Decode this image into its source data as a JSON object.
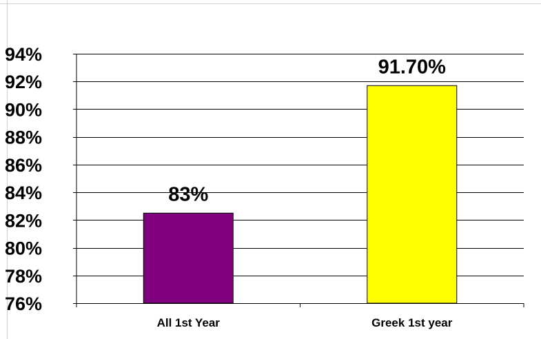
{
  "chart_data": {
    "type": "bar",
    "categories": [
      "All 1st Year",
      "Greek 1st year"
    ],
    "values": [
      82.5,
      91.7
    ],
    "data_labels": [
      "83%",
      "91.70%"
    ],
    "bar_colors": [
      "#800080",
      "#FFFF00"
    ],
    "ylim": [
      76,
      94
    ],
    "yticks": [
      76,
      78,
      80,
      82,
      84,
      86,
      88,
      90,
      92,
      94
    ],
    "ytick_labels": [
      "76%",
      "78%",
      "80%",
      "82%",
      "84%",
      "86%",
      "88%",
      "90%",
      "92%",
      "94%"
    ],
    "grid": true,
    "legend": false
  }
}
